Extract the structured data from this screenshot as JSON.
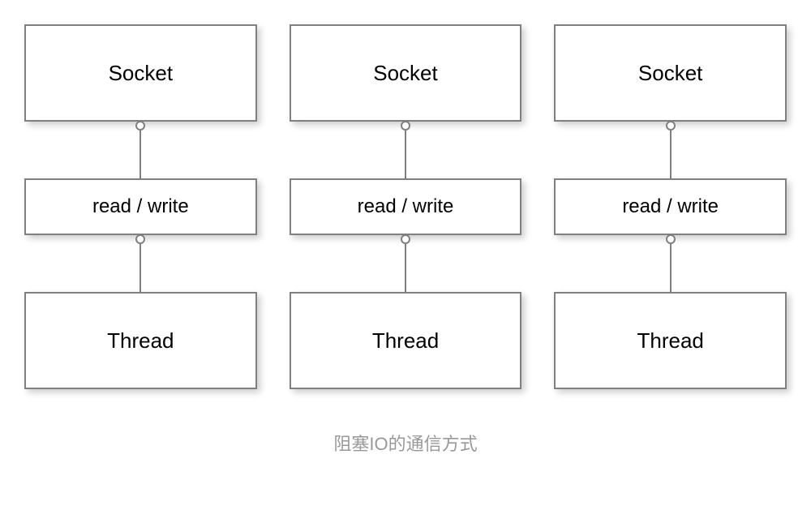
{
  "diagram": {
    "type": "flowchart",
    "background_color": "#ffffff",
    "box_border_color": "#808080",
    "box_bg_color": "#ffffff",
    "box_shadow": "4px 4px 8px rgba(0,0,0,0.2)",
    "connector_color": "#808080",
    "connector_circle_size": 12,
    "text_color": "#000000",
    "caption_color": "#999999",
    "columns": [
      {
        "socket_label": "Socket",
        "rw_label": "read / write",
        "thread_label": "Thread"
      },
      {
        "socket_label": "Socket",
        "rw_label": "read / write",
        "thread_label": "Thread"
      },
      {
        "socket_label": "Socket",
        "rw_label": "read / write",
        "thread_label": "Thread"
      }
    ],
    "caption": "阻塞IO的通信方式",
    "box_heights": {
      "socket": 120,
      "rw": 70,
      "thread": 120
    },
    "font_sizes": {
      "box_main": 26,
      "box_rw": 24,
      "caption": 22
    }
  }
}
